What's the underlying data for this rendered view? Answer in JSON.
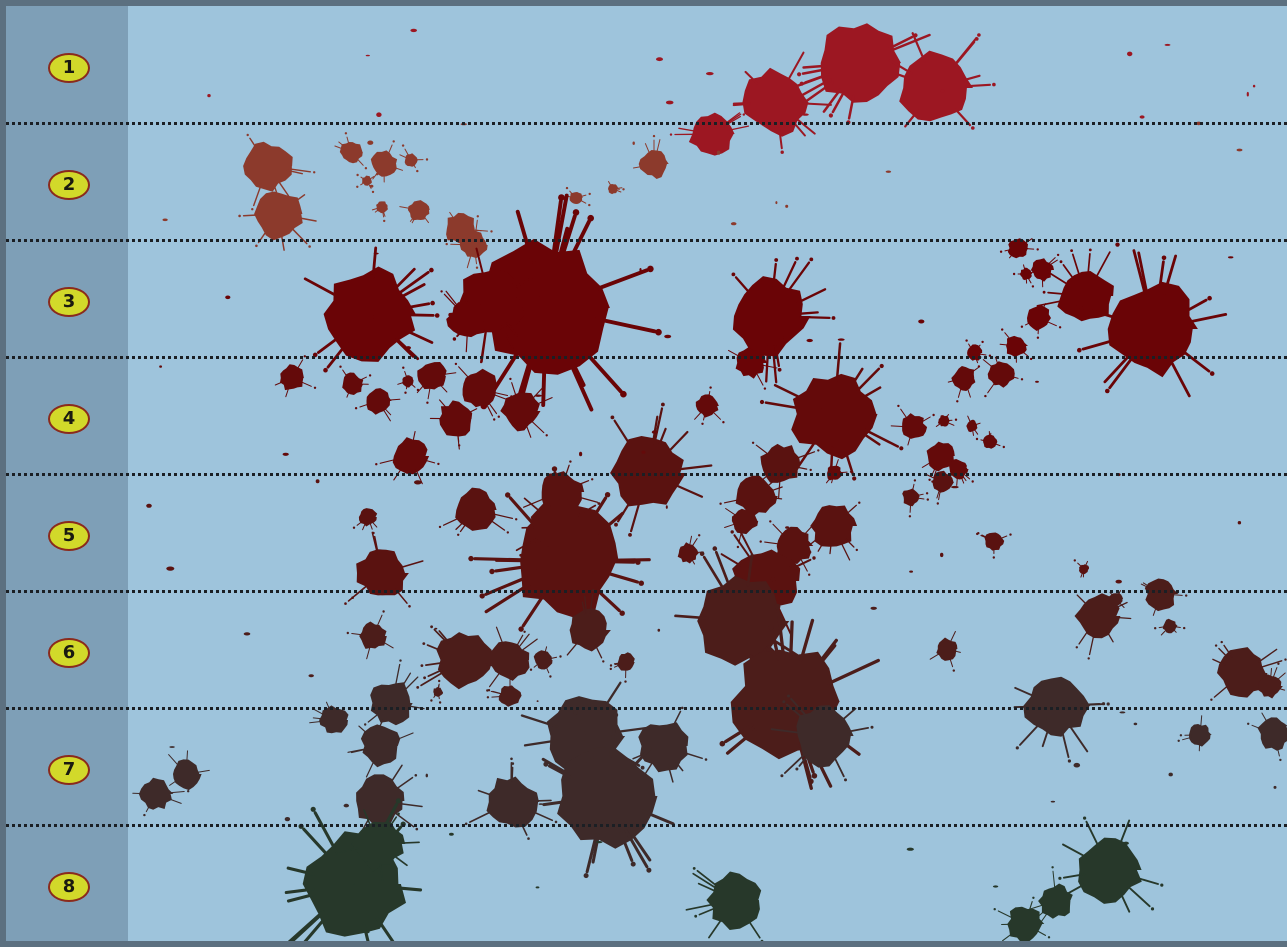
{
  "rows": [
    {
      "label": "1"
    },
    {
      "label": "2"
    },
    {
      "label": "3"
    },
    {
      "label": "4"
    },
    {
      "label": "5"
    },
    {
      "label": "6"
    },
    {
      "label": "7"
    },
    {
      "label": "8"
    }
  ],
  "colors": {
    "background": "#9ec4dc",
    "label_column": "#7e9fb7",
    "badge_fill": "#d2d92a",
    "badge_border": "#8a2a1c",
    "row_1_stain": "#9c1722",
    "row_2_stain": "#8c3a2c",
    "row_3_stain": "#6a0406",
    "row_4_stain": "#640a0a",
    "row_5_stain": "#5a1210",
    "row_6_stain": "#4c1d1a",
    "row_7_stain": "#3e2a29",
    "row_8_stain": "#27382a"
  }
}
